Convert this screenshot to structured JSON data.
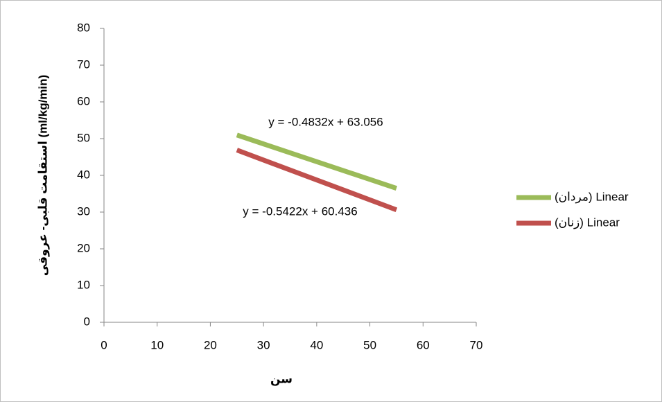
{
  "chart_data": {
    "type": "line",
    "x_label": "سن",
    "y_label": "استقامت قلبی- عروقی (ml/kg/min)",
    "xlim": [
      0,
      70
    ],
    "xticks": [
      0,
      10,
      20,
      30,
      40,
      50,
      60,
      70
    ],
    "ylim": [
      0,
      80
    ],
    "yticks": [
      0,
      10,
      20,
      30,
      40,
      50,
      60,
      70,
      80
    ],
    "x": [
      25,
      55
    ],
    "series": [
      {
        "name": "Linear (مردان)",
        "color": "#9bbb59",
        "values": [
          50.976,
          36.48
        ]
      },
      {
        "name": "Linear (زنان)",
        "color": "#c0504d",
        "values": [
          46.881,
          30.615
        ]
      }
    ],
    "annotations": [
      "y = -0.4832x + 63.056",
      "y = -0.5422x + 60.436"
    ],
    "legend": "right"
  }
}
